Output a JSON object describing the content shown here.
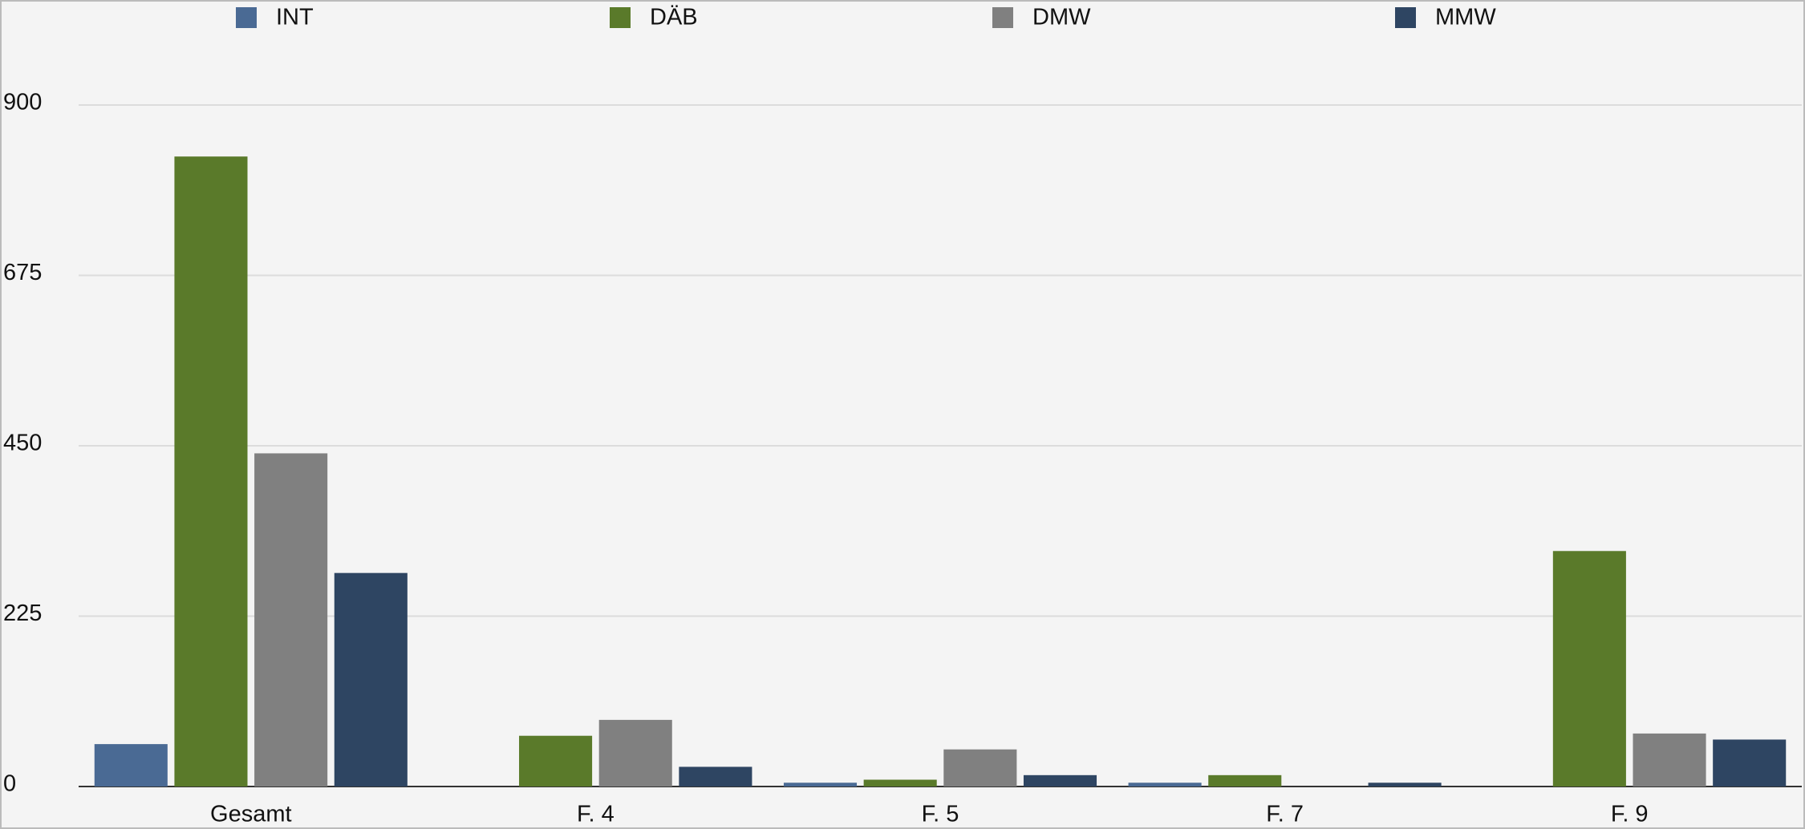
{
  "chart_data": {
    "type": "bar",
    "categories": [
      "Gesamt",
      "F. 4",
      "F. 5",
      "F. 7",
      "F. 9"
    ],
    "series": [
      {
        "name": "INT",
        "color": "#4a6a94",
        "values": [
          56,
          0,
          5,
          5,
          0
        ]
      },
      {
        "name": "DÄB",
        "color": "#5a7a2a",
        "values": [
          832,
          67,
          9,
          15,
          311
        ]
      },
      {
        "name": "DMW",
        "color": "#808080",
        "values": [
          440,
          88,
          49,
          0,
          70
        ]
      },
      {
        "name": "MMW",
        "color": "#2e4562",
        "values": [
          282,
          26,
          15,
          5,
          62
        ]
      }
    ],
    "ylim": [
      0,
      900
    ],
    "yticks": [
      0,
      225,
      450,
      675,
      900
    ],
    "grid": true,
    "legend": "top"
  }
}
